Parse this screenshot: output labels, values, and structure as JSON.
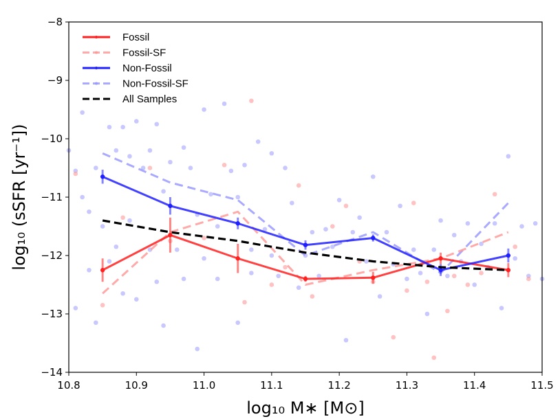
{
  "chart_data": {
    "type": "line",
    "xlabel": "log₁₀ M∗ [M⊙]",
    "ylabel": "log₁₀ (sSFR [yr⁻¹])",
    "xlim": [
      10.8,
      11.5
    ],
    "ylim": [
      -14,
      -8
    ],
    "xticks": [
      "10.8",
      "10.9",
      "11.0",
      "11.1",
      "11.2",
      "11.3",
      "11.4",
      "11.5"
    ],
    "yticks": [
      "−8",
      "−9",
      "−10",
      "−11",
      "−12",
      "−13",
      "−14"
    ],
    "x": [
      10.85,
      10.95,
      11.05,
      11.15,
      11.25,
      11.35,
      11.45
    ],
    "series": [
      {
        "name": "Fossil",
        "color": "#ff2020",
        "style": "solid",
        "values": [
          -12.25,
          -11.65,
          -12.05,
          -12.4,
          -12.38,
          -12.05,
          -12.25
        ],
        "err": [
          0.2,
          0.3,
          0.25,
          0.05,
          0.1,
          0.1,
          0.12
        ]
      },
      {
        "name": "Fossil-SF",
        "color": "#ff9a9a",
        "style": "dashed",
        "values": [
          -12.65,
          -11.6,
          -11.25,
          -12.5,
          -12.25,
          -12.05,
          -11.6
        ],
        "err": []
      },
      {
        "name": "Non-Fossil",
        "color": "#2020ff",
        "style": "solid",
        "values": [
          -10.65,
          -11.15,
          -11.45,
          -11.82,
          -11.7,
          -12.25,
          -12.0
        ],
        "err": [
          0.12,
          0.15,
          0.1,
          0.08,
          0.06,
          0.1,
          0.12
        ]
      },
      {
        "name": "Non-Fossil-SF",
        "color": "#9a9aff",
        "style": "dashed",
        "values": [
          -10.25,
          -10.75,
          -11.05,
          -12.0,
          -11.6,
          -12.3,
          -11.1
        ],
        "err": []
      },
      {
        "name": "All Samples",
        "color": "#000000",
        "style": "dashed",
        "values": [
          -11.4,
          -11.6,
          -11.75,
          -11.95,
          -12.1,
          -12.2,
          -12.25
        ],
        "err": []
      }
    ],
    "scatter": {
      "nonfossil_color": "#9a9aff",
      "fossil_color": "#ff9a9a",
      "nonfossil_points": [
        [
          10.8,
          -10.2
        ],
        [
          10.81,
          -10.55
        ],
        [
          10.81,
          -12.9
        ],
        [
          10.82,
          -9.55
        ],
        [
          10.82,
          -11.0
        ],
        [
          10.83,
          -11.25
        ],
        [
          10.83,
          -12.25
        ],
        [
          10.84,
          -13.15
        ],
        [
          10.84,
          -10.5
        ],
        [
          10.85,
          -11.5
        ],
        [
          10.86,
          -9.8
        ],
        [
          10.86,
          -12.1
        ],
        [
          10.87,
          -10.2
        ],
        [
          10.87,
          -11.85
        ],
        [
          10.88,
          -9.8
        ],
        [
          10.88,
          -12.65
        ],
        [
          10.89,
          -11.4
        ],
        [
          10.89,
          -10.3
        ],
        [
          10.9,
          -9.7
        ],
        [
          10.9,
          -12.75
        ],
        [
          10.91,
          -10.5
        ],
        [
          10.92,
          -10.2
        ],
        [
          10.92,
          -11.9
        ],
        [
          10.93,
          -9.75
        ],
        [
          10.93,
          -12.45
        ],
        [
          10.94,
          -10.9
        ],
        [
          10.94,
          -13.2
        ],
        [
          10.95,
          -10.4
        ],
        [
          10.96,
          -11.9
        ],
        [
          10.97,
          -10.15
        ],
        [
          10.97,
          -12.4
        ],
        [
          10.98,
          -10.5
        ],
        [
          10.99,
          -11.3
        ],
        [
          10.99,
          -13.6
        ],
        [
          11.0,
          -9.5
        ],
        [
          11.0,
          -12.05
        ],
        [
          11.01,
          -10.95
        ],
        [
          11.02,
          -11.5
        ],
        [
          11.02,
          -12.4
        ],
        [
          11.03,
          -9.4
        ],
        [
          11.04,
          -10.55
        ],
        [
          11.05,
          -11.0
        ],
        [
          11.05,
          -13.15
        ],
        [
          11.06,
          -10.45
        ],
        [
          11.07,
          -11.9
        ],
        [
          11.07,
          -12.3
        ],
        [
          11.08,
          -10.05
        ],
        [
          11.09,
          -11.55
        ],
        [
          11.1,
          -12.0
        ],
        [
          11.1,
          -10.25
        ],
        [
          11.11,
          -12.35
        ],
        [
          11.12,
          -10.5
        ],
        [
          11.13,
          -11.1
        ],
        [
          11.14,
          -12.55
        ],
        [
          11.15,
          -12.0
        ],
        [
          11.16,
          -11.6
        ],
        [
          11.17,
          -12.35
        ],
        [
          11.18,
          -11.55
        ],
        [
          11.19,
          -11.85
        ],
        [
          11.2,
          -11.05
        ],
        [
          11.21,
          -13.45
        ],
        [
          11.22,
          -11.6
        ],
        [
          11.23,
          -11.35
        ],
        [
          11.24,
          -12.1
        ],
        [
          11.25,
          -10.65
        ],
        [
          11.26,
          -12.7
        ],
        [
          11.27,
          -11.6
        ],
        [
          11.28,
          -12.15
        ],
        [
          11.29,
          -11.15
        ],
        [
          11.3,
          -12.4
        ],
        [
          11.31,
          -11.9
        ],
        [
          11.32,
          -12.3
        ],
        [
          11.33,
          -13.0
        ],
        [
          11.34,
          -11.9
        ],
        [
          11.35,
          -11.4
        ],
        [
          11.36,
          -12.35
        ],
        [
          11.37,
          -11.65
        ],
        [
          11.38,
          -12.1
        ],
        [
          11.39,
          -11.45
        ],
        [
          11.4,
          -12.5
        ],
        [
          11.41,
          -11.8
        ],
        [
          11.42,
          -12.2
        ],
        [
          11.43,
          -11.45
        ],
        [
          11.44,
          -12.9
        ],
        [
          11.45,
          -10.3
        ],
        [
          11.46,
          -12.05
        ],
        [
          11.47,
          -11.5
        ],
        [
          11.48,
          -12.35
        ],
        [
          11.49,
          -11.45
        ],
        [
          11.5,
          -12.4
        ]
      ],
      "fossil_points": [
        [
          10.81,
          -10.6
        ],
        [
          10.85,
          -12.85
        ],
        [
          10.88,
          -11.35
        ],
        [
          10.92,
          -10.5
        ],
        [
          10.95,
          -11.75
        ],
        [
          11.0,
          -11.7
        ],
        [
          11.03,
          -10.45
        ],
        [
          11.06,
          -12.8
        ],
        [
          11.07,
          -9.35
        ],
        [
          11.1,
          -12.5
        ],
        [
          11.12,
          -12.2
        ],
        [
          11.14,
          -10.8
        ],
        [
          11.16,
          -12.7
        ],
        [
          11.19,
          -11.5
        ],
        [
          11.21,
          -11.15
        ],
        [
          11.23,
          -12.1
        ],
        [
          11.25,
          -12.45
        ],
        [
          11.28,
          -13.4
        ],
        [
          11.3,
          -12.6
        ],
        [
          11.31,
          -11.1
        ],
        [
          11.33,
          -12.45
        ],
        [
          11.34,
          -13.75
        ],
        [
          11.36,
          -12.95
        ],
        [
          11.37,
          -12.35
        ],
        [
          11.39,
          -12.5
        ],
        [
          11.41,
          -12.3
        ],
        [
          11.43,
          -10.95
        ],
        [
          11.46,
          -11.85
        ],
        [
          11.48,
          -12.4
        ]
      ]
    },
    "legend": {
      "position": "top-left",
      "entries": [
        "Fossil",
        "Fossil-SF",
        "Non-Fossil",
        "Non-Fossil-SF",
        "All Samples"
      ]
    }
  }
}
